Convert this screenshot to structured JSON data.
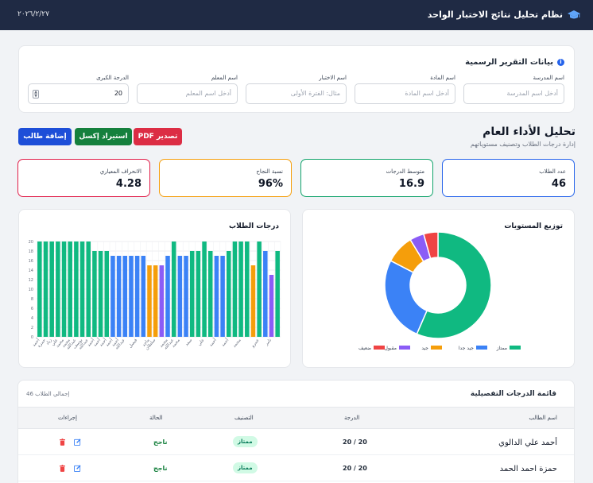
{
  "app": {
    "title": "نظام تحليل نتائج الاختبار الواحد",
    "date": "٢٠٢٦/٢/٢٧",
    "icon": "graduation-cap-icon"
  },
  "report": {
    "title": "بيانات التقرير الرسمية",
    "fields": [
      {
        "label": "اسم المدرسة",
        "placeholder": "أدخل اسم المدرسة",
        "value": ""
      },
      {
        "label": "اسم المادة",
        "placeholder": "أدخل اسم المادة",
        "value": ""
      },
      {
        "label": "اسم الاختبار",
        "placeholder": "مثال: الفترة الأولى",
        "value": ""
      },
      {
        "label": "اسم المعلم",
        "placeholder": "أدخل اسم المعلم",
        "value": ""
      },
      {
        "label": "الدرجة الكبرى",
        "placeholder": "",
        "value": "20"
      }
    ]
  },
  "overview": {
    "title": "تحليل الأداء العام",
    "subtitle": "إدارة درجات الطلاب وتصنيف مستوياتهم",
    "buttons": {
      "pdf": "تصدير PDF",
      "excel": "استيراد إكسل",
      "add": "إضافة طالب"
    }
  },
  "stats": [
    {
      "label": "عدد الطلاب",
      "value": "46"
    },
    {
      "label": "متوسط الدرجات",
      "value": "16.9"
    },
    {
      "label": "نسبة النجاح",
      "value": "96%"
    },
    {
      "label": "الانحراف المعياري",
      "value": "4.28"
    }
  ],
  "colors": {
    "excellent": "#10b981",
    "very_good": "#3b82f6",
    "good": "#f59e0b",
    "acceptable": "#8b5cf6",
    "weak": "#ef4444"
  },
  "chart_data": [
    {
      "type": "pie",
      "title": "توزيع المستويات",
      "legend_position": "bottom",
      "labels": [
        "ممتاز",
        "جيد جدا",
        "جيد",
        "مقبول",
        "ضعيف"
      ],
      "values": [
        26,
        12,
        4,
        2,
        2
      ]
    },
    {
      "type": "bar",
      "title": "درجات الطلاب",
      "ylim": [
        0,
        20
      ],
      "yticks": [
        "0",
        "2",
        "4",
        "6",
        "8",
        "10",
        "12",
        "14",
        "16",
        "18",
        "20"
      ],
      "grid": true,
      "categories": [
        "أحمد",
        "حمزة",
        "زياد",
        "علي",
        "محمد",
        "محمد",
        "عبدالله",
        "يوسف",
        "عبدالله",
        "أحمد",
        "أحمد",
        "أحمد",
        "أحمد",
        "أحمد",
        "عبدالله",
        "",
        "فيصل",
        "",
        "ماجد",
        "سلطان",
        "",
        "محمد",
        "عبدالله",
        "محمد",
        "",
        "سعد",
        "",
        "علي",
        "",
        "أحمد",
        "",
        "أحمد",
        "",
        "محمد",
        "",
        "",
        "عمرو",
        "",
        "تامر",
        ""
      ],
      "values": [
        20,
        20,
        20,
        20,
        20,
        20,
        20,
        20,
        20,
        18,
        18,
        18,
        17,
        17,
        17,
        17,
        17,
        17,
        15,
        15,
        15,
        17,
        20,
        17,
        17,
        18,
        18,
        20,
        18,
        17,
        17,
        18,
        20,
        20,
        20,
        15,
        20,
        18,
        13,
        18
      ],
      "levels": [
        "excellent",
        "excellent",
        "excellent",
        "excellent",
        "excellent",
        "excellent",
        "excellent",
        "excellent",
        "excellent",
        "excellent",
        "excellent",
        "excellent",
        "very_good",
        "very_good",
        "very_good",
        "very_good",
        "very_good",
        "very_good",
        "good",
        "good",
        "acceptable",
        "very_good",
        "excellent",
        "very_good",
        "very_good",
        "excellent",
        "excellent",
        "excellent",
        "excellent",
        "very_good",
        "very_good",
        "excellent",
        "excellent",
        "excellent",
        "excellent",
        "good",
        "excellent",
        "very_good",
        "acceptable",
        "excellent"
      ]
    }
  ],
  "table": {
    "title": "قائمة الدرجات التفصيلية",
    "count": "إجمالي الطلاب 46",
    "headers": {
      "name": "اسم الطالب",
      "score": "الدرجة",
      "level": "التصنيف",
      "status": "الحالة",
      "actions": "إجراءات"
    },
    "rows": [
      {
        "name": "أحمد علي الدالوي",
        "score": "20 / 20",
        "level": "ممتاز",
        "status": "ناجح"
      },
      {
        "name": "حمزة احمد الحمد",
        "score": "20 / 20",
        "level": "ممتاز",
        "status": "ناجح"
      }
    ]
  }
}
